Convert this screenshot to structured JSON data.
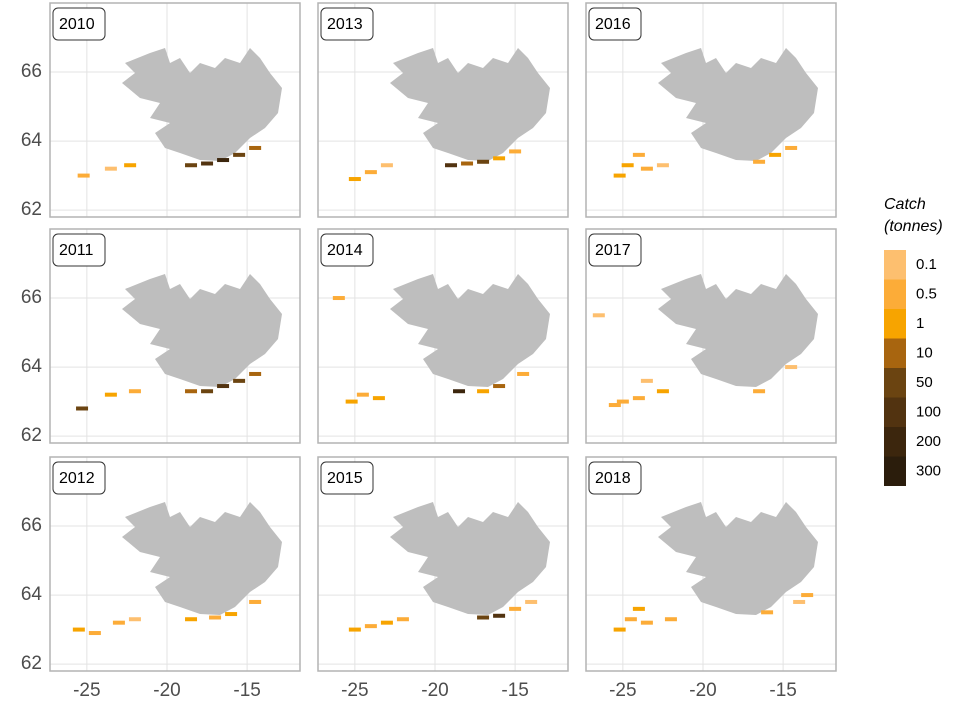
{
  "chart_data": {
    "type": "facet-map",
    "xlim": [
      -27.3,
      -11.7
    ],
    "ylim": [
      61.8,
      68.0
    ],
    "xticks": [
      -25,
      -20,
      -15
    ],
    "yticks": [
      62,
      64,
      66
    ],
    "grid": true,
    "land_color": "#bebebe",
    "legend": {
      "title": [
        "Catch",
        "(tonnes)"
      ],
      "breaks": [
        0.1,
        0.5,
        1,
        10,
        50,
        100,
        200,
        300
      ],
      "colors": [
        "#fdbf6f",
        "#fcac38",
        "#f7a400",
        "#a8650f",
        "#6b4411",
        "#523310",
        "#3c260d",
        "#2b1d0c"
      ]
    },
    "facets": [
      {
        "label": "2010",
        "lon": [
          -18.5,
          -17.5,
          -16.5,
          -15.5,
          -14.5,
          -25.2,
          -23.5,
          -22.3
        ],
        "lat": [
          63.3,
          63.35,
          63.45,
          63.6,
          63.8,
          63.0,
          63.2,
          63.3
        ],
        "catch": [
          50,
          100,
          200,
          50,
          10,
          0.5,
          0.1,
          1
        ]
      },
      {
        "label": "2011",
        "lon": [
          -18.5,
          -17.5,
          -16.5,
          -15.5,
          -14.5,
          -25.3,
          -23.5,
          -22.0
        ],
        "lat": [
          63.3,
          63.3,
          63.45,
          63.6,
          63.8,
          62.8,
          63.2,
          63.3
        ],
        "catch": [
          10,
          50,
          100,
          50,
          10,
          50,
          1,
          0.5
        ]
      },
      {
        "label": "2012",
        "lon": [
          -18.5,
          -17.0,
          -16.0,
          -14.5,
          -25.5,
          -24.5,
          -23.0,
          -22.0
        ],
        "lat": [
          63.3,
          63.35,
          63.45,
          63.8,
          63.0,
          62.9,
          63.2,
          63.3
        ],
        "catch": [
          1,
          0.5,
          1,
          0.5,
          1,
          0.5,
          0.5,
          0.1
        ]
      },
      {
        "label": "2013",
        "lon": [
          -19.0,
          -18.0,
          -17.0,
          -16.0,
          -15.0,
          -25.0,
          -24.0,
          -23.0
        ],
        "lat": [
          63.3,
          63.35,
          63.4,
          63.5,
          63.7,
          62.9,
          63.1,
          63.3
        ],
        "catch": [
          100,
          10,
          50,
          1,
          0.5,
          1,
          0.5,
          0.1
        ]
      },
      {
        "label": "2014",
        "lon": [
          -18.5,
          -17.0,
          -16.0,
          -14.5,
          -25.2,
          -24.5,
          -23.5,
          -26.0
        ],
        "lat": [
          63.3,
          63.3,
          63.45,
          63.8,
          63.0,
          63.2,
          63.1,
          66.0
        ],
        "catch": [
          200,
          1,
          10,
          0.5,
          1,
          0.5,
          1,
          0.5
        ]
      },
      {
        "label": "2015",
        "lon": [
          -17.0,
          -16.0,
          -15.0,
          -14.0,
          -25.0,
          -24.0,
          -23.0,
          -22.0
        ],
        "lat": [
          63.35,
          63.4,
          63.6,
          63.8,
          63.0,
          63.1,
          63.2,
          63.3
        ],
        "catch": [
          50,
          100,
          0.5,
          0.1,
          1,
          0.5,
          1,
          0.5
        ]
      },
      {
        "label": "2016",
        "lon": [
          -16.5,
          -15.5,
          -14.5,
          -25.2,
          -24.7,
          -24.0,
          -23.5,
          -22.5
        ],
        "lat": [
          63.4,
          63.6,
          63.8,
          63.0,
          63.3,
          63.6,
          63.2,
          63.3
        ],
        "catch": [
          0.5,
          1,
          0.5,
          1,
          1,
          0.5,
          0.5,
          0.1
        ]
      },
      {
        "label": "2017",
        "lon": [
          -16.5,
          -14.5,
          -25.0,
          -24.0,
          -22.5,
          -26.5,
          -23.5,
          -25.5
        ],
        "lat": [
          63.3,
          64.0,
          63.0,
          63.1,
          63.3,
          65.5,
          63.6,
          62.9
        ],
        "catch": [
          0.5,
          0.1,
          0.5,
          0.5,
          1,
          0.1,
          0.1,
          0.5
        ]
      },
      {
        "label": "2018",
        "lon": [
          -16.0,
          -14.0,
          -25.2,
          -24.5,
          -24.0,
          -23.5,
          -22.0,
          -13.5
        ],
        "lat": [
          63.5,
          63.8,
          63.0,
          63.3,
          63.6,
          63.2,
          63.3,
          64.0
        ],
        "catch": [
          0.5,
          0.1,
          1,
          0.5,
          1,
          0.5,
          0.5,
          0.5
        ]
      }
    ]
  }
}
